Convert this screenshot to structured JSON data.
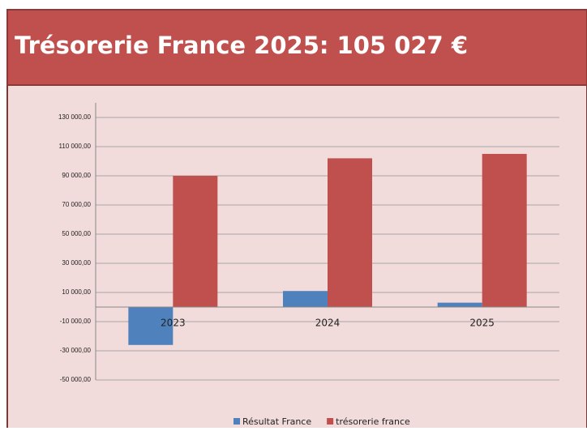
{
  "chart_data": {
    "type": "bar",
    "title": "Trésorerie France 2025: 105 027 €",
    "categories": [
      "2023",
      "2024",
      "2025"
    ],
    "series": [
      {
        "name": "Résultat France",
        "color": "#4f81bd",
        "values": [
          -26000,
          11000,
          3000
        ]
      },
      {
        "name": "trésorerie france",
        "color": "#c0504d",
        "values": [
          90000,
          102000,
          105027
        ]
      }
    ],
    "ylim": [
      -50000,
      140000
    ],
    "yticks": [
      {
        "value": -50000,
        "label": "-50 000,00"
      },
      {
        "value": -30000,
        "label": "-30 000,00"
      },
      {
        "value": -10000,
        "label": "-10 000,00"
      },
      {
        "value": 10000,
        "label": "10 000,00"
      },
      {
        "value": 30000,
        "label": "30 000,00"
      },
      {
        "value": 50000,
        "label": "50 000,00"
      },
      {
        "value": 70000,
        "label": "70 000,00"
      },
      {
        "value": 90000,
        "label": "90 000,00"
      },
      {
        "value": 110000,
        "label": "110 000,00"
      },
      {
        "value": 130000,
        "label": "130 000,00"
      }
    ],
    "grid": true
  }
}
